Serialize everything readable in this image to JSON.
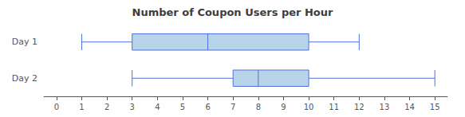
{
  "chart_data": {
    "type": "boxplot",
    "title": "Number of Coupon Users per Hour",
    "orientation": "horizontal",
    "categories": [
      "Day 1",
      "Day 2"
    ],
    "values": [
      {
        "whisker_low": 1,
        "q1": 3,
        "median": 6,
        "q3": 10,
        "whisker_high": 12
      },
      {
        "whisker_low": 3,
        "q1": 7,
        "median": 8,
        "q3": 10,
        "whisker_high": 15
      }
    ],
    "color": "#b8d4e8",
    "xlim": [
      -0.5,
      15.5
    ],
    "xticks": [
      0,
      1,
      2,
      3,
      4,
      5,
      6,
      7,
      8,
      9,
      10,
      11,
      12,
      13,
      14,
      15
    ],
    "grid": false
  }
}
